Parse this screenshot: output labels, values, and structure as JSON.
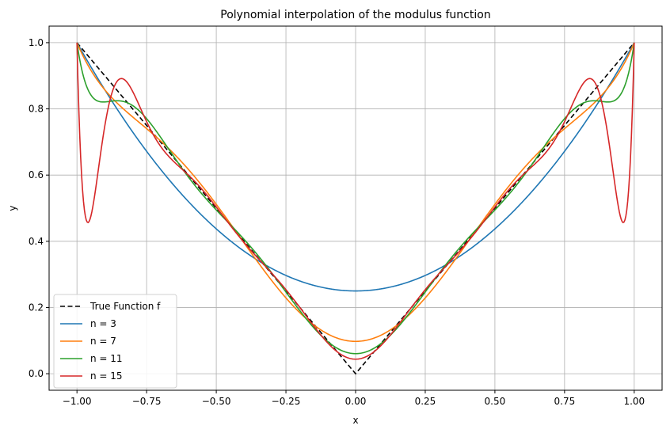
{
  "chart_data": {
    "type": "line",
    "title": "Polynomial interpolation of the modulus function",
    "xlabel": "x",
    "ylabel": "y",
    "xlim": [
      -1.1,
      1.1
    ],
    "ylim": [
      -0.05,
      1.05
    ],
    "xticks": [
      -1.0,
      -0.75,
      -0.5,
      -0.25,
      0.0,
      0.25,
      0.5,
      0.75,
      1.0
    ],
    "xtick_labels": [
      "−1.00",
      "−0.75",
      "−0.50",
      "−0.25",
      "0.00",
      "0.25",
      "0.50",
      "0.75",
      "1.00"
    ],
    "yticks": [
      0.0,
      0.2,
      0.4,
      0.6,
      0.8,
      1.0
    ],
    "ytick_labels": [
      "0.0",
      "0.2",
      "0.4",
      "0.6",
      "0.8",
      "1.0"
    ],
    "grid": true,
    "legend_position": "lower-left",
    "series": [
      {
        "name": "True Function f",
        "degree": 0,
        "color": "#000000",
        "dashed": true
      },
      {
        "name": "n = 3",
        "degree": 3,
        "color": "#1f77b4",
        "dashed": false
      },
      {
        "name": "n = 7",
        "degree": 7,
        "color": "#ff7f0e",
        "dashed": false
      },
      {
        "name": "n = 11",
        "degree": 11,
        "color": "#2ca02c",
        "dashed": false
      },
      {
        "name": "n = 15",
        "degree": 15,
        "color": "#d62728",
        "dashed": false
      }
    ]
  }
}
